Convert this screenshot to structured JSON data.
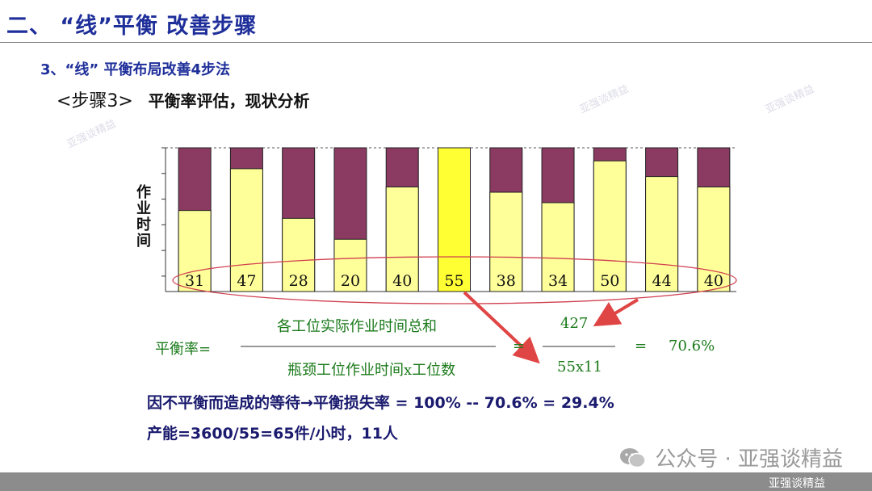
{
  "header": {
    "title": "二、 “线”平衡  改善步骤",
    "subtitle": "3、“线” 平衡布局改善4步法",
    "step_label": "<步骤3>",
    "step_desc": "平衡率评估，现状分析"
  },
  "chart_data": {
    "type": "bar",
    "ylabel": "作业时间",
    "categories": [
      "",
      "",
      "",
      "",
      "",
      "",
      "",
      "",
      "",
      "",
      ""
    ],
    "values": [
      31,
      47,
      28,
      20,
      40,
      55,
      38,
      34,
      50,
      44,
      40
    ],
    "bottleneck": 55,
    "ylim": [
      0,
      55
    ],
    "series": [
      {
        "values": [
          31,
          47,
          28,
          20,
          40,
          55,
          38,
          34,
          50,
          44,
          40
        ],
        "color": "#ffff99"
      },
      {
        "values": [
          24,
          8,
          27,
          35,
          15,
          0,
          17,
          21,
          5,
          11,
          15
        ],
        "color": "#8b3a62"
      }
    ],
    "highlight_index": 5,
    "highlight_color": "#ffff33"
  },
  "formula": {
    "label": "平衡率=",
    "numerator": "各工位实际作业时间总和",
    "denominator": "瓶颈工位作业时间x工位数",
    "num_value": "427",
    "den_value": "55x11",
    "eq1": "=",
    "eq2": "=",
    "result": "70.6%"
  },
  "conclusions": {
    "line1": "因不平衡而造成的等待→平衡损失率 = 100% -- 70.6% = 29.4%",
    "line2": "产能=3600/55=65件/小时，11人"
  },
  "watermark": {
    "text": "公众号 · 亚强谈精益",
    "stamp": "亚强谈精益"
  },
  "footer": {
    "text": "亚强谈精益"
  }
}
